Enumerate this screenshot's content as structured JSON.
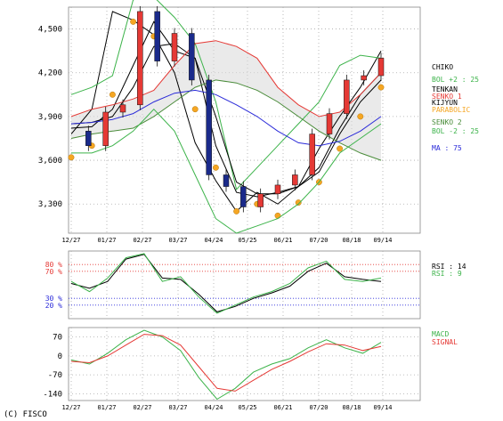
{
  "chart_data": [
    {
      "type": "line",
      "panel": "price",
      "title": "",
      "xlabel": "",
      "ylabel": "",
      "x_ticks": [
        "12/27",
        "01/27",
        "02/27",
        "03/27",
        "04/24",
        "05/25",
        "06/21",
        "07/20",
        "08/18",
        "09/14"
      ],
      "y_ticks": [
        "4,500",
        "4,200",
        "3,900",
        "3,600",
        "3,300"
      ],
      "ylim": [
        3100,
        4650
      ],
      "grid": true,
      "legend_position": "right",
      "candlestick_ohlc_approx": {
        "x": [
          "12/27",
          "01/10",
          "01/27",
          "02/10",
          "02/27",
          "03/13",
          "03/27",
          "04/10",
          "04/24",
          "05/10",
          "05/25",
          "06/08",
          "06/21",
          "07/06",
          "07/20",
          "08/04",
          "08/18",
          "09/01",
          "09/14"
        ],
        "close": [
          3800,
          3700,
          3930,
          3980,
          4620,
          4280,
          4470,
          4150,
          3500,
          3420,
          3280,
          3370,
          3430,
          3500,
          3780,
          3920,
          4150,
          4180,
          4300
        ]
      },
      "series": [
        {
          "name": "CHIKO",
          "color": "#000000",
          "values": [
            3780,
            3950,
            4620,
            4560,
            4460,
            4200,
            3720,
            3460,
            3250,
            3380,
            3300,
            3420,
            3680,
            3900,
            4100,
            4350
          ]
        },
        {
          "name": "BOL +2 : 25",
          "color": "#3cb34a",
          "values": [
            4050,
            4100,
            4180,
            4700,
            4720,
            4580,
            4400,
            4000,
            3400,
            3550,
            3700,
            3850,
            4000,
            4250,
            4320,
            4300
          ]
        },
        {
          "name": "TENKAN",
          "color": "#000000",
          "values": [
            3820,
            3830,
            3950,
            4250,
            4550,
            4350,
            4300,
            3700,
            3380,
            3350,
            3380,
            3420,
            3550,
            3820,
            4050,
            4200
          ]
        },
        {
          "name": "KIJYUN",
          "color": "#000000",
          "values": [
            3850,
            3860,
            3900,
            4100,
            4380,
            4400,
            4300,
            3900,
            3450,
            3370,
            3370,
            3420,
            3520,
            3780,
            4000,
            4150
          ]
        },
        {
          "name": "SENKO 1",
          "color": "#e53935",
          "values": [
            3900,
            3950,
            3980,
            4020,
            4080,
            4250,
            4400,
            4420,
            4380,
            4300,
            4100,
            3980,
            3900,
            3930,
            4050,
            4200
          ]
        },
        {
          "name": "SENKO 2",
          "color": "#4a8c3a",
          "values": [
            3750,
            3780,
            3800,
            3820,
            3900,
            4000,
            4100,
            4150,
            4130,
            4080,
            4000,
            3900,
            3800,
            3720,
            3650,
            3600
          ]
        },
        {
          "name": "PARABOLIC",
          "color": "#f5a623",
          "values": [
            3620,
            3700,
            4050,
            4550,
            4450,
            4380,
            3950,
            3550,
            3250,
            3300,
            3220,
            3310,
            3450,
            3680,
            3900,
            4100
          ]
        },
        {
          "name": "BOL -2 : 25",
          "color": "#3cb34a",
          "values": [
            3650,
            3650,
            3700,
            3800,
            3950,
            3800,
            3500,
            3200,
            3100,
            3150,
            3200,
            3300,
            3450,
            3650,
            3750,
            3850
          ]
        },
        {
          "name": "MA : 75",
          "color": "#2b2bd9",
          "values": [
            3850,
            3860,
            3880,
            3920,
            4000,
            4060,
            4080,
            4050,
            3980,
            3900,
            3800,
            3720,
            3700,
            3730,
            3800,
            3900
          ]
        }
      ],
      "legend_labels": [
        "CHIKO",
        "BOL +2 : 25",
        "TENKAN",
        "SENKO 1",
        "KIJYUN",
        "PARABOLIC",
        "SENKO 2",
        "BOL -2 : 25",
        "MA : 75"
      ],
      "legend_colors": [
        "#000000",
        "#3cb34a",
        "#000000",
        "#e53935",
        "#000000",
        "#f5a623",
        "#4a8c3a",
        "#3cb34a",
        "#2b2bd9"
      ]
    },
    {
      "type": "line",
      "panel": "rsi",
      "y_ticks": [
        "80 %",
        "70 %",
        "30 %",
        "20 %"
      ],
      "ylim": [
        0,
        100
      ],
      "reference_lines": [
        {
          "value": 80,
          "color": "#e53935"
        },
        {
          "value": 70,
          "color": "#e53935"
        },
        {
          "value": 30,
          "color": "#2b2bd9"
        },
        {
          "value": 20,
          "color": "#2b2bd9"
        }
      ],
      "series": [
        {
          "name": "RSI : 14",
          "color": "#000000",
          "values": [
            52,
            45,
            55,
            88,
            95,
            60,
            58,
            36,
            10,
            18,
            30,
            38,
            48,
            70,
            82,
            62,
            58,
            55
          ]
        },
        {
          "name": "RSI : 9",
          "color": "#3cb34a",
          "values": [
            55,
            40,
            60,
            90,
            96,
            55,
            62,
            32,
            8,
            20,
            32,
            40,
            52,
            75,
            85,
            58,
            55,
            60
          ]
        }
      ],
      "legend_labels": [
        "RSI : 14",
        "RSI : 9"
      ],
      "legend_colors": [
        "#000000",
        "#3cb34a"
      ]
    },
    {
      "type": "line",
      "panel": "macd",
      "y_ticks": [
        "70",
        "0",
        "-70",
        "-140"
      ],
      "ylim": [
        -165,
        105
      ],
      "series": [
        {
          "name": "MACD",
          "color": "#3cb34a",
          "values": [
            -15,
            -30,
            10,
            60,
            95,
            70,
            20,
            -80,
            -160,
            -120,
            -60,
            -30,
            -10,
            30,
            60,
            30,
            10,
            50
          ]
        },
        {
          "name": "SIGNAL",
          "color": "#e53935",
          "values": [
            -20,
            -25,
            0,
            40,
            80,
            75,
            40,
            -40,
            -120,
            -130,
            -90,
            -50,
            -20,
            15,
            45,
            40,
            20,
            35
          ]
        }
      ],
      "legend_labels": [
        "MACD",
        "SIGNAL"
      ],
      "legend_colors": [
        "#3cb34a",
        "#e53935"
      ]
    }
  ],
  "copyright": "(C) FISCO"
}
